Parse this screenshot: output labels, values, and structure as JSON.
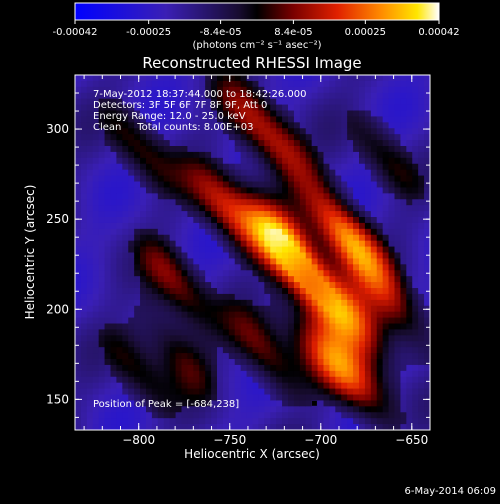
{
  "colorbar": {
    "ticks": [
      "-0.00042",
      "-0.00025",
      "-8.4e-05",
      "8.4e-05",
      "0.00025",
      "0.00042"
    ],
    "tick_values": [
      -0.00042,
      -0.00025,
      -8.4e-05,
      8.4e-05,
      0.00025,
      0.00042
    ],
    "unit_label": "(photons cm⁻² s⁻¹ asec⁻²)",
    "colormap": [
      "#0000ff",
      "#4422aa",
      "#2a1a55",
      "#000000",
      "#7a0000",
      "#e02000",
      "#ff8000",
      "#ffe000",
      "#ffffff"
    ]
  },
  "chart_data": {
    "type": "heatmap",
    "title": "Reconstructed RHESSI Image",
    "xlabel": "Heliocentric X (arcsec)",
    "ylabel": "Heliocentric Y (arcsec)",
    "xlim": [
      -835,
      -640
    ],
    "ylim": [
      133,
      330
    ],
    "x_ticks": [
      -800,
      -750,
      -700,
      -650
    ],
    "x_tick_labels": [
      "−800",
      "−750",
      "−700",
      "−650"
    ],
    "y_ticks": [
      150,
      200,
      250,
      300
    ],
    "y_tick_labels": [
      "150",
      "200",
      "250",
      "300"
    ],
    "info_lines": [
      "7-May-2012 18:37:44.000 to 18:42:26.000",
      "Detectors: 3F 5F 6F 7F 8F 9F, Att 0",
      "Energy Range: 12.0 - 25.0 keV",
      "Clean     Total counts: 8.00E+03"
    ],
    "peak_label": "Position of Peak = [-684,238]",
    "peak": [
      -684,
      238
    ],
    "colorbar_range": [
      -0.00042,
      0.00042
    ],
    "bright_sources": [
      {
        "x": -685,
        "y": 240,
        "level": 1.0
      },
      {
        "x": -722,
        "y": 237,
        "level": 0.95
      },
      {
        "x": -752,
        "y": 255,
        "level": 0.7
      },
      {
        "x": -702,
        "y": 210,
        "level": 0.65
      },
      {
        "x": -682,
        "y": 195,
        "level": 0.6
      },
      {
        "x": -780,
        "y": 215,
        "level": 0.55
      },
      {
        "x": -680,
        "y": 160,
        "level": 0.6
      },
      {
        "x": -730,
        "y": 175,
        "level": 0.55
      },
      {
        "x": -658,
        "y": 200,
        "level": 0.5
      },
      {
        "x": -720,
        "y": 290,
        "level": 0.5
      },
      {
        "x": -800,
        "y": 290,
        "level": 0.45
      },
      {
        "x": -740,
        "y": 305,
        "level": 0.45
      },
      {
        "x": -778,
        "y": 175,
        "level": 0.45
      },
      {
        "x": -800,
        "y": 165,
        "level": 0.4
      },
      {
        "x": -700,
        "y": 175,
        "level": 0.45
      },
      {
        "x": -665,
        "y": 285,
        "level": 0.4
      }
    ]
  },
  "timestamp": "6-May-2014 06:09"
}
